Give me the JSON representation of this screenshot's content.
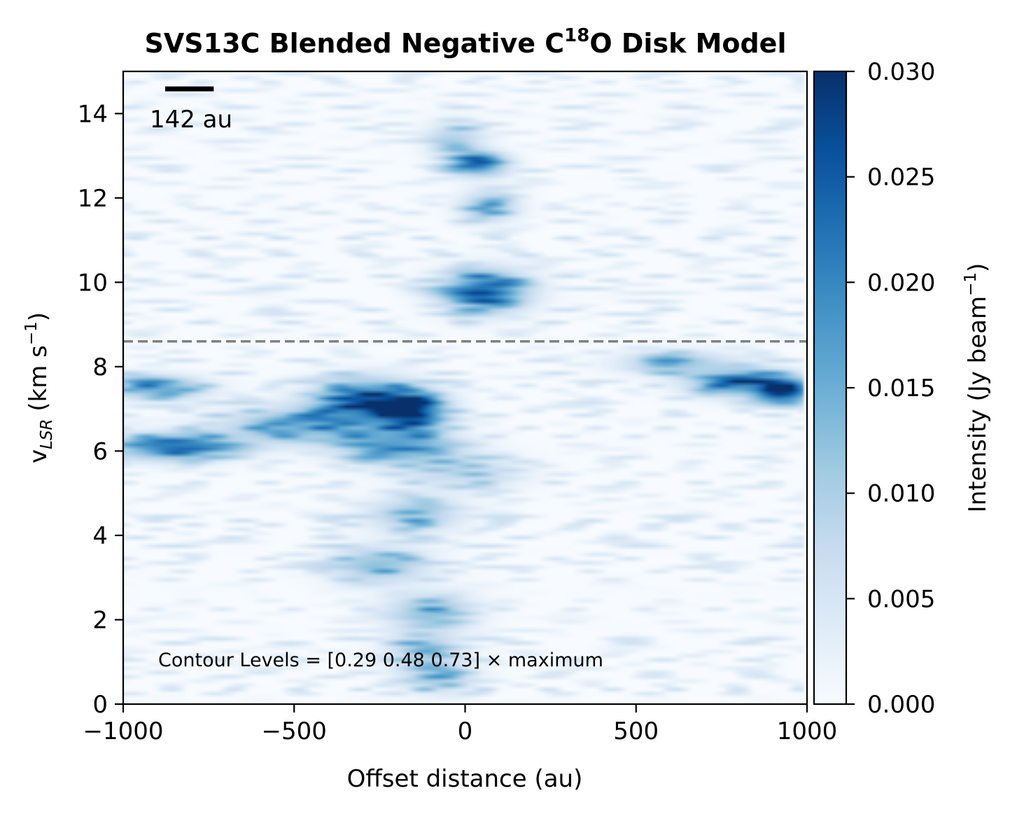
{
  "chart_data": {
    "type": "heatmap",
    "title_main": "SVS13C Blended Negative C",
    "title_sup": "18",
    "title_end": "O Disk Model",
    "xlabel": "Offset distance (au)",
    "ylabel_main": "v",
    "ylabel_sub": "LSR",
    "ylabel_units_open": " (km s",
    "ylabel_units_sup": "−1",
    "ylabel_units_close": ")",
    "xlim": [
      -1000,
      1000
    ],
    "ylim": [
      0,
      15
    ],
    "x_ticks": [
      -1000,
      -500,
      0,
      500,
      1000
    ],
    "x_tick_labels": [
      "−1000",
      "−500",
      "0",
      "500",
      "1000"
    ],
    "y_ticks": [
      0,
      2,
      4,
      6,
      8,
      10,
      12,
      14
    ],
    "y_tick_labels": [
      "0",
      "2",
      "4",
      "6",
      "8",
      "10",
      "12",
      "14"
    ],
    "colormap": "Blues",
    "colormap_stops": [
      "#f7fbff",
      "#deebf7",
      "#c6dbef",
      "#9ecae1",
      "#6baed6",
      "#4292c6",
      "#2171b5",
      "#08519c",
      "#08306b"
    ],
    "colorbar": {
      "range": [
        0.0,
        0.03
      ],
      "ticks": [
        0.0,
        0.005,
        0.01,
        0.015,
        0.02,
        0.025,
        0.03
      ],
      "tick_labels": [
        "0.000",
        "0.005",
        "0.010",
        "0.015",
        "0.020",
        "0.025",
        "0.030"
      ],
      "label_main": "Intensity (Jy beam",
      "label_sup": "−1",
      "label_close": ")"
    },
    "dashed_line_velocity": 8.6,
    "dashed_line_color": "#808080",
    "scale_bar_label": "142 au",
    "scale_bar_length_au": 142,
    "contour_label": "Contour Levels = [0.29 0.48 0.73] × maximum",
    "emission_features": [
      {
        "x": 60,
        "v": 9.8,
        "sx": 90,
        "sv": 0.35,
        "amp": 0.028
      },
      {
        "x": 40,
        "v": 12.8,
        "sx": 60,
        "sv": 0.2,
        "amp": 0.025
      },
      {
        "x": 70,
        "v": 11.8,
        "sx": 60,
        "sv": 0.25,
        "amp": 0.016
      },
      {
        "x": -30,
        "v": 13.4,
        "sx": 60,
        "sv": 0.3,
        "amp": 0.012
      },
      {
        "x": -280,
        "v": 7.2,
        "sx": 110,
        "sv": 0.35,
        "amp": 0.03
      },
      {
        "x": -150,
        "v": 6.9,
        "sx": 70,
        "sv": 0.3,
        "amp": 0.026
      },
      {
        "x": -850,
        "v": 6.1,
        "sx": 120,
        "sv": 0.22,
        "amp": 0.028
      },
      {
        "x": -900,
        "v": 7.5,
        "sx": 100,
        "sv": 0.2,
        "amp": 0.02
      },
      {
        "x": -500,
        "v": 6.6,
        "sx": 150,
        "sv": 0.3,
        "amp": 0.018
      },
      {
        "x": -200,
        "v": 6.1,
        "sx": 120,
        "sv": 0.3,
        "amp": 0.02
      },
      {
        "x": 820,
        "v": 7.6,
        "sx": 110,
        "sv": 0.22,
        "amp": 0.026
      },
      {
        "x": 950,
        "v": 7.4,
        "sx": 50,
        "sv": 0.2,
        "amp": 0.025
      },
      {
        "x": 620,
        "v": 8.1,
        "sx": 120,
        "sv": 0.2,
        "amp": 0.014
      },
      {
        "x": -150,
        "v": 4.5,
        "sx": 100,
        "sv": 0.3,
        "amp": 0.014
      },
      {
        "x": -250,
        "v": 3.3,
        "sx": 100,
        "sv": 0.3,
        "amp": 0.016
      },
      {
        "x": -100,
        "v": 2.2,
        "sx": 90,
        "sv": 0.3,
        "amp": 0.016
      },
      {
        "x": -120,
        "v": 1.3,
        "sx": 80,
        "sv": 0.3,
        "amp": 0.013
      },
      {
        "x": -80,
        "v": 0.6,
        "sx": 80,
        "sv": 0.25,
        "amp": 0.013
      },
      {
        "x": 0,
        "v": 5.5,
        "sx": 120,
        "sv": 0.3,
        "amp": 0.01
      }
    ]
  }
}
